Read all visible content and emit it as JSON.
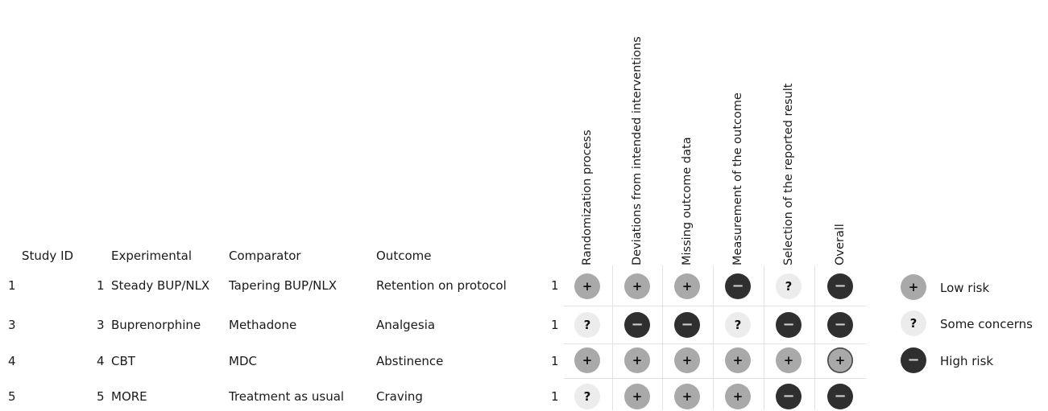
{
  "headers": {
    "study_id": "Study ID",
    "experimental": "Experimental",
    "comparator": "Comparator",
    "outcome": "Outcome"
  },
  "domains": [
    "Randomization process",
    "Deviations from intended interventions",
    "Missing outcome data",
    "Measurement of the outcome",
    "Selection of the reported result",
    "Overall"
  ],
  "rows": [
    {
      "study_id": "1",
      "exp_num": "1",
      "experimental": "Steady BUP/NLX",
      "comparator": "Tapering BUP/NLX",
      "outcome": "Retention on protocol",
      "weight": "1",
      "ratings": [
        "low",
        "low",
        "low",
        "high",
        "some",
        "high"
      ]
    },
    {
      "study_id": "3",
      "exp_num": "3",
      "experimental": "Buprenorphine",
      "comparator": "Methadone",
      "outcome": "Analgesia",
      "weight": "1",
      "ratings": [
        "some",
        "high",
        "high",
        "some",
        "high",
        "high"
      ]
    },
    {
      "study_id": "4",
      "exp_num": "4",
      "experimental": "CBT",
      "comparator": "MDC",
      "outcome": "Abstinence",
      "weight": "1",
      "ratings": [
        "low",
        "low",
        "low",
        "low",
        "low",
        "low"
      ]
    },
    {
      "study_id": "5",
      "exp_num": "5",
      "experimental": "MORE",
      "comparator": "Treatment as usual",
      "outcome": "Craving",
      "weight": "1",
      "ratings": [
        "some",
        "low",
        "low",
        "low",
        "high",
        "high"
      ]
    }
  ],
  "legend": [
    {
      "level": "low",
      "symbol": "+",
      "label": "Low risk"
    },
    {
      "level": "some",
      "symbol": "?",
      "label": "Some concerns"
    },
    {
      "level": "high",
      "symbol": "−",
      "label": "High risk"
    }
  ],
  "symbols": {
    "low": "+",
    "some": "?",
    "high": "−"
  },
  "colors": {
    "low": "#a9a9a9",
    "some": "#ececec",
    "high": "#2f2f2f",
    "grid": "#e2e2e2"
  }
}
